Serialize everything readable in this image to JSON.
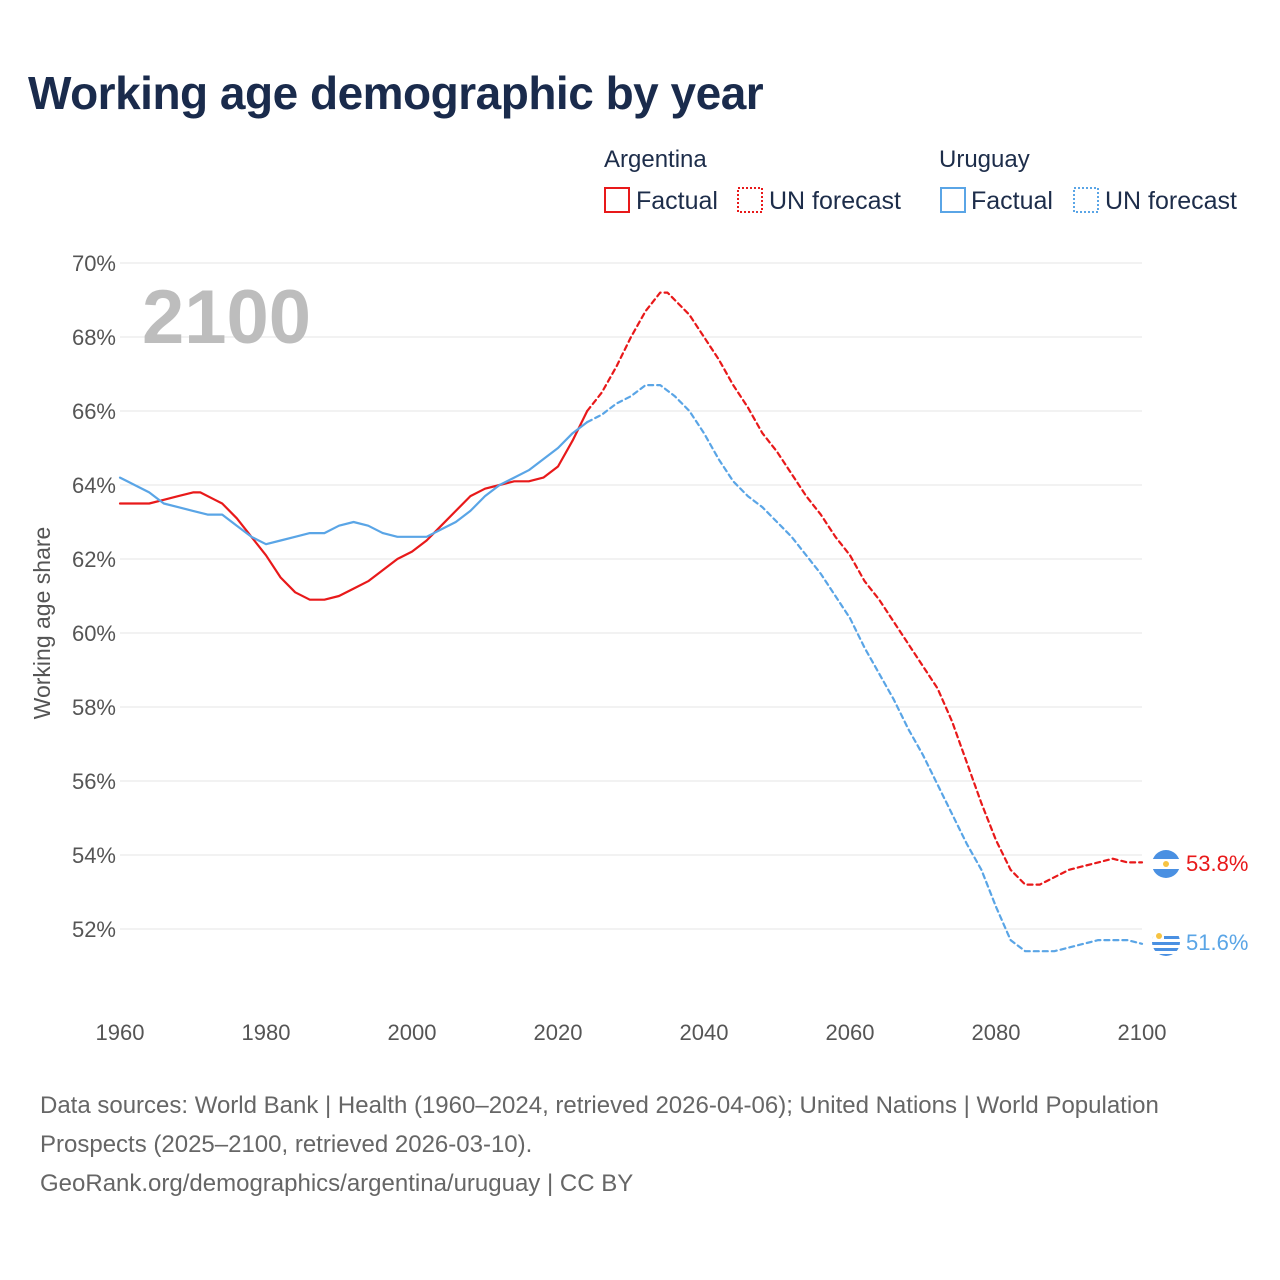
{
  "title": "Working age demographic by year",
  "watermark_year": "2100",
  "legend": {
    "groups": [
      {
        "country": "Argentina",
        "factual_label": "Factual",
        "forecast_label": "UN forecast",
        "color": "#e8191a"
      },
      {
        "country": "Uruguay",
        "factual_label": "Factual",
        "forecast_label": "UN forecast",
        "color": "#5aa5e6"
      }
    ]
  },
  "footer": {
    "sources": "Data sources: World Bank | Health (1960–2024, retrieved 2026-04-06); United Nations | World Population Prospects (2025–2100, retrieved 2026-03-10).",
    "credit": "GeoRank.org/demographics/argentina/uruguay | CC BY"
  },
  "end_labels": {
    "argentina": "53.8%",
    "uruguay": "51.6%"
  },
  "chart_data": {
    "type": "line",
    "title": "Working age demographic by year",
    "xlabel": "",
    "ylabel": "Working age share",
    "xlim": [
      1960,
      2100
    ],
    "ylim": [
      50.0,
      70.0
    ],
    "x_ticks": [
      1960,
      1980,
      2000,
      2020,
      2040,
      2060,
      2080,
      2100
    ],
    "x_tick_labels": [
      "1960",
      "1980",
      "2000",
      "2020",
      "2040",
      "2060",
      "2080",
      "2100"
    ],
    "y_ticks": [
      52,
      54,
      56,
      58,
      60,
      62,
      64,
      66,
      68,
      70
    ],
    "y_tick_labels": [
      "52%",
      "54%",
      "56%",
      "58%",
      "60%",
      "62%",
      "64%",
      "66%",
      "68%",
      "70%"
    ],
    "grid": true,
    "legend_position": "top-right",
    "series": [
      {
        "name": "Argentina",
        "segment": "Factual",
        "color": "#e8191a",
        "style": "solid",
        "points": [
          [
            1960,
            63.5
          ],
          [
            1964,
            63.5
          ],
          [
            1966,
            63.6
          ],
          [
            1968,
            63.7
          ],
          [
            1970,
            63.8
          ],
          [
            1971,
            63.8
          ],
          [
            1973,
            63.6
          ],
          [
            1974,
            63.5
          ],
          [
            1976,
            63.1
          ],
          [
            1978,
            62.6
          ],
          [
            1980,
            62.1
          ],
          [
            1982,
            61.5
          ],
          [
            1984,
            61.1
          ],
          [
            1986,
            60.9
          ],
          [
            1988,
            60.9
          ],
          [
            1990,
            61.0
          ],
          [
            1992,
            61.2
          ],
          [
            1994,
            61.4
          ],
          [
            1996,
            61.7
          ],
          [
            1998,
            62.0
          ],
          [
            2000,
            62.2
          ],
          [
            2002,
            62.5
          ],
          [
            2004,
            62.9
          ],
          [
            2006,
            63.3
          ],
          [
            2008,
            63.7
          ],
          [
            2010,
            63.9
          ],
          [
            2012,
            64.0
          ],
          [
            2014,
            64.1
          ],
          [
            2016,
            64.1
          ],
          [
            2018,
            64.2
          ],
          [
            2020,
            64.5
          ],
          [
            2022,
            65.2
          ],
          [
            2024,
            66.0
          ]
        ]
      },
      {
        "name": "Argentina",
        "segment": "UN forecast",
        "color": "#e8191a",
        "style": "dashed",
        "points": [
          [
            2024,
            66.0
          ],
          [
            2026,
            66.5
          ],
          [
            2028,
            67.2
          ],
          [
            2030,
            68.0
          ],
          [
            2032,
            68.7
          ],
          [
            2034,
            69.2
          ],
          [
            2035,
            69.2
          ],
          [
            2036,
            69.0
          ],
          [
            2038,
            68.6
          ],
          [
            2040,
            68.0
          ],
          [
            2042,
            67.4
          ],
          [
            2044,
            66.7
          ],
          [
            2046,
            66.1
          ],
          [
            2048,
            65.4
          ],
          [
            2050,
            64.9
          ],
          [
            2052,
            64.3
          ],
          [
            2054,
            63.7
          ],
          [
            2056,
            63.2
          ],
          [
            2058,
            62.6
          ],
          [
            2060,
            62.1
          ],
          [
            2062,
            61.4
          ],
          [
            2064,
            60.9
          ],
          [
            2066,
            60.3
          ],
          [
            2068,
            59.7
          ],
          [
            2070,
            59.1
          ],
          [
            2072,
            58.5
          ],
          [
            2074,
            57.6
          ],
          [
            2076,
            56.5
          ],
          [
            2078,
            55.4
          ],
          [
            2080,
            54.4
          ],
          [
            2082,
            53.6
          ],
          [
            2084,
            53.2
          ],
          [
            2086,
            53.2
          ],
          [
            2088,
            53.4
          ],
          [
            2090,
            53.6
          ],
          [
            2092,
            53.7
          ],
          [
            2094,
            53.8
          ],
          [
            2096,
            53.9
          ],
          [
            2098,
            53.8
          ],
          [
            2100,
            53.8
          ]
        ]
      },
      {
        "name": "Uruguay",
        "segment": "Factual",
        "color": "#5aa5e6",
        "style": "solid",
        "points": [
          [
            1960,
            64.2
          ],
          [
            1962,
            64.0
          ],
          [
            1964,
            63.8
          ],
          [
            1966,
            63.5
          ],
          [
            1968,
            63.4
          ],
          [
            1970,
            63.3
          ],
          [
            1972,
            63.2
          ],
          [
            1974,
            63.2
          ],
          [
            1976,
            62.9
          ],
          [
            1978,
            62.6
          ],
          [
            1980,
            62.4
          ],
          [
            1982,
            62.5
          ],
          [
            1984,
            62.6
          ],
          [
            1986,
            62.7
          ],
          [
            1988,
            62.7
          ],
          [
            1990,
            62.9
          ],
          [
            1992,
            63.0
          ],
          [
            1994,
            62.9
          ],
          [
            1996,
            62.7
          ],
          [
            1998,
            62.6
          ],
          [
            2000,
            62.6
          ],
          [
            2002,
            62.6
          ],
          [
            2004,
            62.8
          ],
          [
            2006,
            63.0
          ],
          [
            2008,
            63.3
          ],
          [
            2010,
            63.7
          ],
          [
            2012,
            64.0
          ],
          [
            2014,
            64.2
          ],
          [
            2016,
            64.4
          ],
          [
            2018,
            64.7
          ],
          [
            2020,
            65.0
          ],
          [
            2022,
            65.4
          ],
          [
            2024,
            65.7
          ]
        ]
      },
      {
        "name": "Uruguay",
        "segment": "UN forecast",
        "color": "#5aa5e6",
        "style": "dashed",
        "points": [
          [
            2024,
            65.7
          ],
          [
            2026,
            65.9
          ],
          [
            2028,
            66.2
          ],
          [
            2030,
            66.4
          ],
          [
            2032,
            66.7
          ],
          [
            2034,
            66.7
          ],
          [
            2036,
            66.4
          ],
          [
            2038,
            66.0
          ],
          [
            2040,
            65.4
          ],
          [
            2042,
            64.7
          ],
          [
            2044,
            64.1
          ],
          [
            2046,
            63.7
          ],
          [
            2048,
            63.4
          ],
          [
            2050,
            63.0
          ],
          [
            2052,
            62.6
          ],
          [
            2054,
            62.1
          ],
          [
            2056,
            61.6
          ],
          [
            2058,
            61.0
          ],
          [
            2060,
            60.4
          ],
          [
            2062,
            59.6
          ],
          [
            2064,
            58.9
          ],
          [
            2066,
            58.2
          ],
          [
            2068,
            57.4
          ],
          [
            2070,
            56.7
          ],
          [
            2072,
            55.9
          ],
          [
            2074,
            55.1
          ],
          [
            2076,
            54.3
          ],
          [
            2078,
            53.6
          ],
          [
            2080,
            52.6
          ],
          [
            2082,
            51.7
          ],
          [
            2084,
            51.4
          ],
          [
            2086,
            51.4
          ],
          [
            2088,
            51.4
          ],
          [
            2090,
            51.5
          ],
          [
            2092,
            51.6
          ],
          [
            2094,
            51.7
          ],
          [
            2096,
            51.7
          ],
          [
            2098,
            51.7
          ],
          [
            2100,
            51.6
          ]
        ]
      }
    ]
  }
}
